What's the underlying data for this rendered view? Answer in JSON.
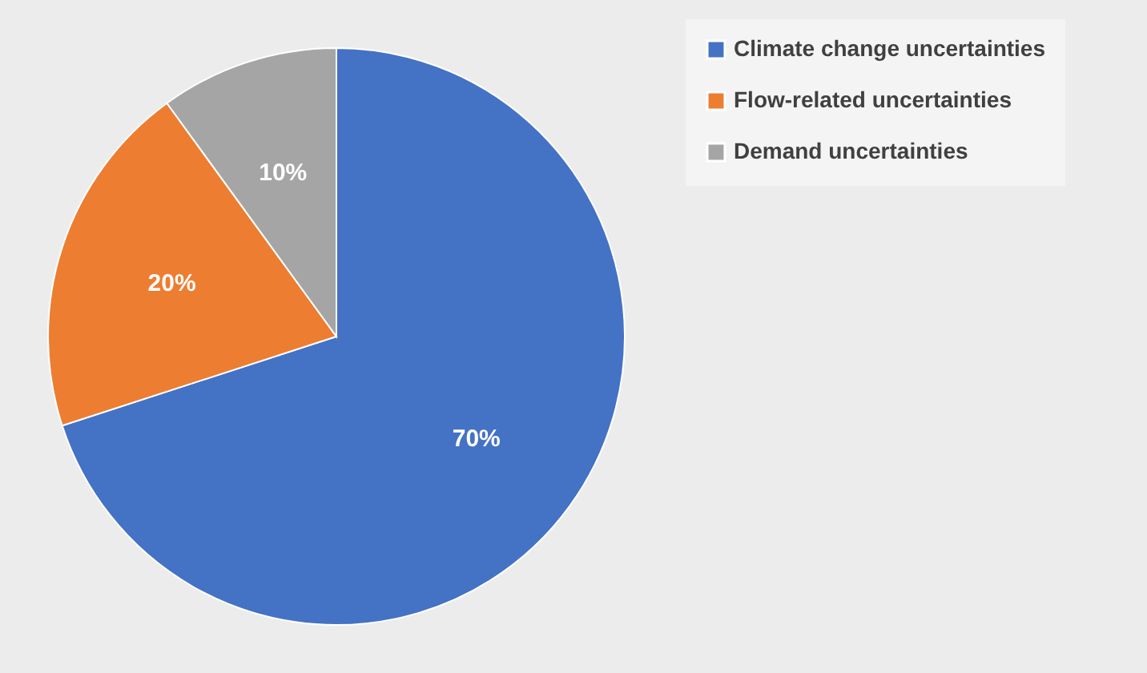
{
  "chart_data": {
    "type": "pie",
    "categories": [
      "Climate change uncertainties",
      "Flow-related uncertainties",
      "Demand uncertainties"
    ],
    "values": [
      70,
      20,
      10
    ],
    "colors": [
      "#4472c4",
      "#ed7d31",
      "#a5a5a5"
    ],
    "value_labels": [
      "70%",
      "20%",
      "10%"
    ],
    "legend": "top right"
  }
}
